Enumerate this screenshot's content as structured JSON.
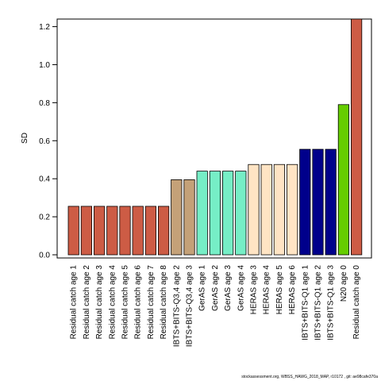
{
  "chart_data": {
    "type": "bar",
    "ylabel": "SD",
    "xlabel": "",
    "title": "",
    "ylim": [
      0,
      1.24
    ],
    "yticks": [
      "0.0",
      "0.2",
      "0.4",
      "0.6",
      "0.8",
      "1.0",
      "1.2"
    ],
    "grid": false,
    "categories": [
      "Residual catch age 1",
      "Residual catch age 2",
      "Residual catch age 3",
      "Residual catch age 4",
      "Residual catch age 5",
      "Residual catch age 6",
      "Residual catch age 7",
      "Residual catch age 8",
      "IBTS+BITS-Q3,4 age 2",
      "IBTS+BITS-Q3,4 age 3",
      "GerAS age 1",
      "GerAS age 2",
      "GerAS age 3",
      "GerAS age 4",
      "HERAS age 3",
      "HERAS age 4",
      "HERAS age 5",
      "HERAS age 6",
      "IBTS+BITS-Q1 age 1",
      "IBTS+BITS-Q1 age 2",
      "IBTS+BITS-Q1 age 3",
      "N20 age 0",
      "Residual catch age 0"
    ],
    "values": [
      0.255,
      0.255,
      0.255,
      0.255,
      0.255,
      0.255,
      0.255,
      0.255,
      0.395,
      0.395,
      0.44,
      0.44,
      0.44,
      0.44,
      0.475,
      0.475,
      0.475,
      0.475,
      0.555,
      0.555,
      0.555,
      0.79,
      1.24
    ],
    "colors": [
      "#CD5C45",
      "#CD5C45",
      "#CD5C45",
      "#CD5C45",
      "#CD5C45",
      "#CD5C45",
      "#CD5C45",
      "#CD5C45",
      "#C4A178",
      "#C4A178",
      "#76EEC6",
      "#76EEC6",
      "#76EEC6",
      "#76EEC6",
      "#FFE4C4",
      "#FFE4C4",
      "#FFE4C4",
      "#FFE4C4",
      "#00008B",
      "#00008B",
      "#00008B",
      "#66CD00",
      "#CD5C45"
    ]
  },
  "footer": "stockassessment.org, WBSS_HAWG_2018_MAP, r10172 , git: ae98cafe370a"
}
